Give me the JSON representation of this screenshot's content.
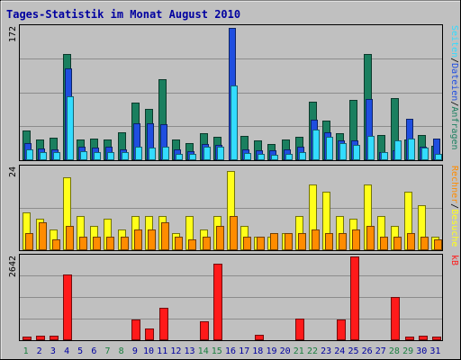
{
  "chart_data": [
    {
      "type": "bar",
      "title": "Tages-Statistik im Monat August 2010",
      "categories": [
        "1",
        "2",
        "3",
        "4",
        "5",
        "6",
        "7",
        "8",
        "9",
        "10",
        "11",
        "12",
        "13",
        "14",
        "15",
        "16",
        "17",
        "18",
        "19",
        "20",
        "21",
        "22",
        "23",
        "24",
        "25",
        "26",
        "27",
        "28",
        "29",
        "30",
        "31"
      ],
      "weekend_days": [
        "1",
        "7",
        "8",
        "14",
        "15",
        "21",
        "22",
        "28",
        "29"
      ],
      "ylim": [
        0,
        172
      ],
      "ytick": "172",
      "right_label_parts": [
        "Anfragen",
        "Dateien",
        "Seiten"
      ],
      "right_label_sep": "/",
      "series": [
        {
          "name": "Anfragen",
          "color": "#1a7f5f",
          "values": [
            38,
            27,
            29,
            137,
            27,
            28,
            27,
            36,
            74,
            66,
            105,
            27,
            22,
            35,
            30,
            0,
            31,
            26,
            21,
            27,
            30,
            75,
            51,
            35,
            78,
            137,
            33,
            80,
            27,
            32,
            19
          ]
        },
        {
          "name": "Dateien",
          "color": "#1f4ee0",
          "values": [
            22,
            15,
            14,
            119,
            18,
            16,
            18,
            14,
            48,
            48,
            47,
            14,
            12,
            21,
            20,
            171,
            14,
            13,
            13,
            14,
            17,
            52,
            36,
            26,
            26,
            79,
            11,
            13,
            53,
            17,
            28
          ]
        },
        {
          "name": "Seiten",
          "color": "#33dcff",
          "values": [
            14,
            11,
            11,
            83,
            12,
            11,
            11,
            11,
            18,
            16,
            17,
            8,
            8,
            18,
            17,
            96,
            9,
            8,
            7,
            8,
            11,
            39,
            30,
            22,
            20,
            31,
            10,
            25,
            28,
            16,
            8
          ]
        }
      ]
    },
    {
      "type": "bar",
      "ylim": [
        0,
        24
      ],
      "ytick": "24",
      "right_label_parts": [
        "Besuche",
        "Rechner"
      ],
      "right_label_sep": "/",
      "series": [
        {
          "name": "Besuche",
          "color": "#ffff1a",
          "values": [
            11,
            9,
            6,
            21,
            10,
            7,
            9,
            6,
            10,
            10,
            10,
            5,
            10,
            6,
            10,
            23,
            7,
            4,
            4,
            5,
            10,
            19,
            17,
            10,
            9,
            19,
            10,
            7,
            17,
            13,
            4
          ]
        },
        {
          "name": "Rechner",
          "color": "#ff8c00",
          "values": [
            5,
            8,
            3,
            7,
            4,
            4,
            4,
            4,
            6,
            6,
            8,
            4,
            3,
            4,
            7,
            10,
            4,
            4,
            5,
            5,
            5,
            6,
            5,
            5,
            6,
            7,
            4,
            4,
            5,
            4,
            3
          ]
        }
      ]
    },
    {
      "type": "bar",
      "ylim": [
        0,
        2642
      ],
      "ytick": "2642",
      "right_label": "kB",
      "series": [
        {
          "name": "kB",
          "color": "#ff1a1a",
          "values": [
            103,
            147,
            147,
            2080,
            0,
            0,
            0,
            0,
            660,
            382,
            1009,
            0,
            0,
            588,
            2426,
            0,
            0,
            177,
            0,
            0,
            691,
            0,
            0,
            654,
            2642,
            0,
            0,
            1366,
            103,
            147,
            103
          ]
        }
      ]
    }
  ]
}
